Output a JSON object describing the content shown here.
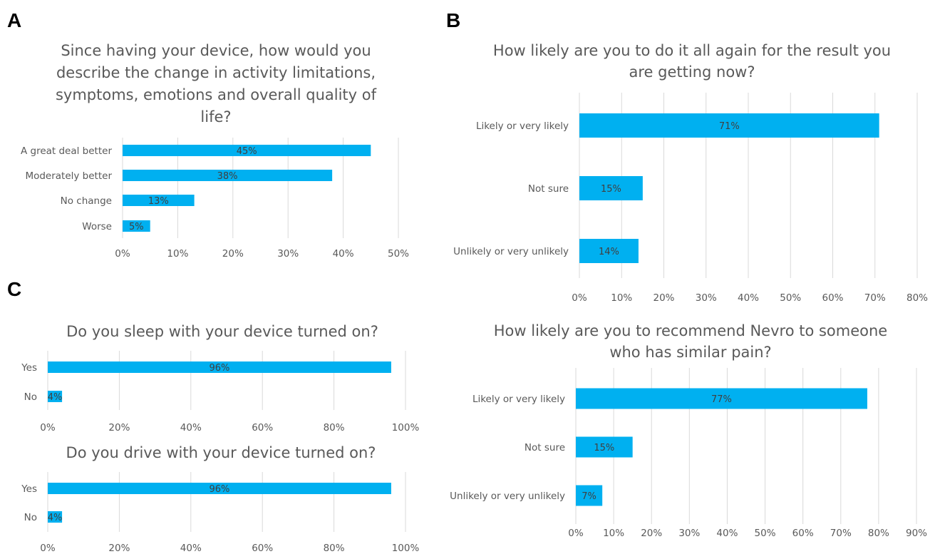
{
  "colors": {
    "bar": "#00b0f0",
    "grid": "#d9d9d9",
    "text": "#595959"
  },
  "panel_labels": [
    "A",
    "B",
    "C"
  ],
  "chart_data": [
    {
      "type": "bar",
      "orientation": "horizontal",
      "panel": "A",
      "title": "Since having your device, how would you describe the change in activity limitations, symptoms, emotions and overall quality of life?",
      "title_lines": [
        "Since having your device, how would you",
        "describe the change in activity limitations,",
        "symptoms, emotions and overall quality of",
        "life?"
      ],
      "categories": [
        "A great deal better",
        "Moderately better",
        "No change",
        "Worse"
      ],
      "values": [
        45,
        38,
        13,
        5
      ],
      "data_labels": [
        "45%",
        "38%",
        "13%",
        "5%"
      ],
      "xlim": [
        0,
        50
      ],
      "xticks": [
        "0%",
        "10%",
        "20%",
        "30%",
        "40%",
        "50%"
      ],
      "grid": true
    },
    {
      "type": "bar",
      "orientation": "horizontal",
      "panel": "B",
      "title": "How likely are you to do it all again for the result you are getting now?",
      "title_lines": [
        "How likely are you to do it all again for the result you",
        "are getting now?"
      ],
      "categories": [
        "Likely or very likely",
        "Not sure",
        "Unlikely or very unlikely"
      ],
      "values": [
        71,
        15,
        14
      ],
      "data_labels": [
        "71%",
        "15%",
        "14%"
      ],
      "xlim": [
        0,
        80
      ],
      "xticks": [
        "0%",
        "10%",
        "20%",
        "30%",
        "40%",
        "50%",
        "60%",
        "70%",
        "80%"
      ],
      "grid": true
    },
    {
      "type": "bar",
      "orientation": "horizontal",
      "panel": "B",
      "title": "How likely are you to recommend Nevro to someone who has similar pain?",
      "title_lines": [
        "How likely are you to recommend Nevro to someone",
        "who has similar pain?"
      ],
      "categories": [
        "Likely or very likely",
        "Not sure",
        "Unlikely or very unlikely"
      ],
      "values": [
        77,
        15,
        7
      ],
      "data_labels": [
        "77%",
        "15%",
        "7%"
      ],
      "xlim": [
        0,
        90
      ],
      "xticks": [
        "0%",
        "10%",
        "20%",
        "30%",
        "40%",
        "50%",
        "60%",
        "70%",
        "80%",
        "90%"
      ],
      "grid": true
    },
    {
      "type": "bar",
      "orientation": "horizontal",
      "panel": "C",
      "title": "Do you sleep with your device turned on?",
      "title_lines": [
        "Do you sleep with your device turned on?"
      ],
      "categories": [
        "Yes",
        "No"
      ],
      "values": [
        96,
        4
      ],
      "data_labels": [
        "96%",
        "4%"
      ],
      "xlim": [
        0,
        100
      ],
      "xticks": [
        "0%",
        "20%",
        "40%",
        "60%",
        "80%",
        "100%"
      ],
      "grid": true
    },
    {
      "type": "bar",
      "orientation": "horizontal",
      "panel": "C",
      "title": "Do you drive with your device turned on?",
      "title_lines": [
        "Do you drive with your device turned on?"
      ],
      "categories": [
        "Yes",
        "No"
      ],
      "values": [
        96,
        4
      ],
      "data_labels": [
        "96%",
        "4%"
      ],
      "xlim": [
        0,
        100
      ],
      "xticks": [
        "0%",
        "20%",
        "40%",
        "60%",
        "80%",
        "100%"
      ],
      "grid": true
    }
  ]
}
